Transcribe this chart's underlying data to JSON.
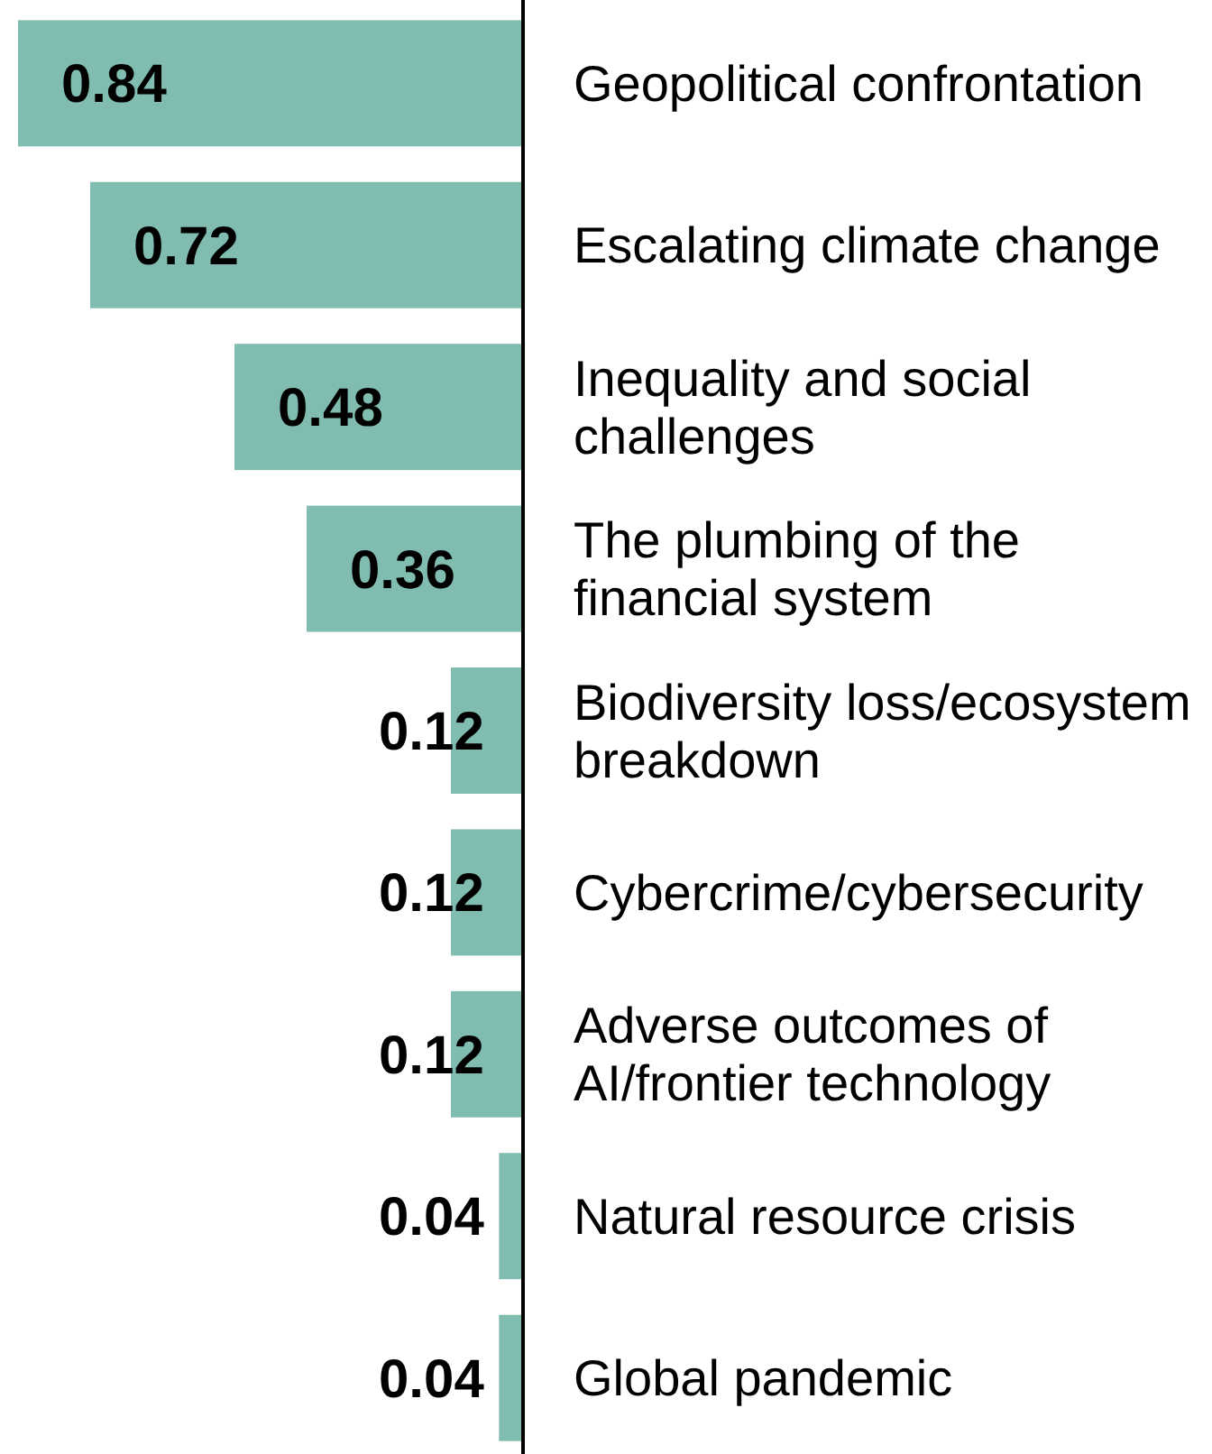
{
  "chart_data": {
    "type": "bar",
    "orientation": "horizontal",
    "categories": [
      "Geopolitical confrontation",
      "Escalating climate change",
      "Inequality and social challenges",
      "The plumbing of the financial system",
      "Biodiversity loss/ecosystem breakdown",
      "Cybercrime/cybersecurity",
      "Adverse outcomes of AI/frontier technology",
      "Natural resource crisis",
      "Global pandemic"
    ],
    "values": [
      0.84,
      0.72,
      0.48,
      0.36,
      0.12,
      0.12,
      0.12,
      0.04,
      0.04
    ],
    "color": "#80bdb0",
    "xlim": [
      0.87,
      0
    ],
    "data_labels": true,
    "tick_labels": "y",
    "grid": false
  }
}
